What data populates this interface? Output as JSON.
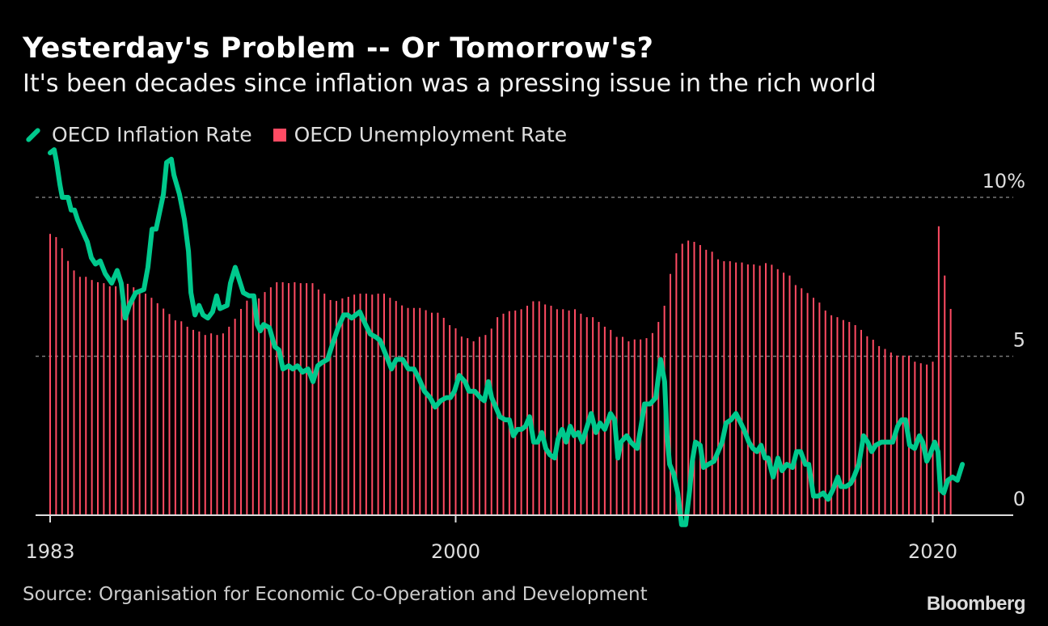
{
  "title": "Yesterday's Problem -- Or Tomorrow's?",
  "subtitle": "It's been decades since inflation was a pressing issue in the rich world",
  "source": "Source: Organisation for Economic Co-Operation and Development",
  "logo": "Bloomberg",
  "colors": {
    "inflation": "#00c98d",
    "unemployment": "#ff4b63",
    "background": "#000000",
    "grid": "#777777"
  },
  "chart_data": {
    "type": "bar+line",
    "title": "Yesterday's Problem -- Or Tomorrow's?",
    "legend": [
      "OECD Inflation Rate",
      "OECD Unemployment Rate"
    ],
    "legend_placement": "top-left",
    "xlabel": "",
    "ylabel": "",
    "xlim": [
      1982.4,
      2023.4
    ],
    "ylim": [
      0,
      10
    ],
    "x_ticks": [
      {
        "value": 1983,
        "label": "1983"
      },
      {
        "value": 2000,
        "label": "2000"
      },
      {
        "value": 2020,
        "label": "2020"
      }
    ],
    "y_ticks": [
      {
        "value": 10,
        "label": "10%"
      },
      {
        "value": 5,
        "label": "5"
      },
      {
        "value": 0,
        "label": "0"
      }
    ],
    "grid": "dashed horizontal at 5 and 10",
    "unemployment": {
      "name": "OECD Unemployment Rate",
      "start": 1983.0,
      "frequency": "quarterly",
      "values": [
        8.85,
        8.75,
        8.4,
        8.0,
        7.7,
        7.5,
        7.5,
        7.4,
        7.33,
        7.3,
        7.2,
        7.2,
        7.2,
        7.28,
        7.17,
        7.0,
        6.97,
        6.84,
        6.67,
        6.5,
        6.33,
        6.13,
        6.1,
        5.93,
        5.83,
        5.78,
        5.67,
        5.72,
        5.67,
        5.72,
        5.93,
        6.18,
        6.49,
        6.75,
        6.8,
        6.82,
        7.02,
        7.17,
        7.33,
        7.33,
        7.3,
        7.33,
        7.3,
        7.3,
        7.3,
        7.1,
        6.97,
        6.77,
        6.74,
        6.82,
        6.87,
        6.94,
        6.97,
        6.97,
        6.94,
        6.97,
        6.97,
        6.84,
        6.74,
        6.6,
        6.52,
        6.52,
        6.52,
        6.45,
        6.37,
        6.37,
        6.21,
        5.98,
        5.88,
        5.62,
        5.57,
        5.47,
        5.61,
        5.67,
        5.87,
        6.23,
        6.34,
        6.42,
        6.44,
        6.48,
        6.59,
        6.73,
        6.73,
        6.63,
        6.59,
        6.48,
        6.48,
        6.44,
        6.48,
        6.34,
        6.23,
        6.23,
        6.08,
        5.93,
        5.83,
        5.61,
        5.61,
        5.47,
        5.53,
        5.53,
        5.57,
        5.73,
        6.08,
        6.59,
        7.59,
        8.24,
        8.54,
        8.64,
        8.6,
        8.5,
        8.35,
        8.29,
        8.05,
        7.99,
        7.99,
        7.95,
        7.95,
        7.89,
        7.89,
        7.85,
        7.93,
        7.88,
        7.74,
        7.63,
        7.54,
        7.24,
        7.14,
        6.99,
        6.84,
        6.69,
        6.44,
        6.29,
        6.23,
        6.14,
        6.08,
        5.98,
        5.83,
        5.63,
        5.52,
        5.32,
        5.23,
        5.12,
        5.02,
        5.02,
        5.02,
        4.83,
        4.78,
        4.74,
        4.83,
        9.09,
        7.54,
        6.49
      ]
    },
    "inflation": {
      "name": "OECD Inflation Rate",
      "points": [
        [
          1983.0,
          11.4
        ],
        [
          1983.17,
          11.5
        ],
        [
          1983.27,
          11.1
        ],
        [
          1983.41,
          10.4
        ],
        [
          1983.51,
          10.0
        ],
        [
          1983.75,
          10.0
        ],
        [
          1983.88,
          9.6
        ],
        [
          1984.02,
          9.6
        ],
        [
          1984.15,
          9.3
        ],
        [
          1984.32,
          9.0
        ],
        [
          1984.56,
          8.6
        ],
        [
          1984.73,
          8.1
        ],
        [
          1984.9,
          7.9
        ],
        [
          1985.1,
          8.0
        ],
        [
          1985.31,
          7.6
        ],
        [
          1985.58,
          7.3
        ],
        [
          1985.81,
          7.7
        ],
        [
          1985.98,
          7.3
        ],
        [
          1986.15,
          6.2
        ],
        [
          1986.32,
          6.6
        ],
        [
          1986.59,
          7.0
        ],
        [
          1986.93,
          7.1
        ],
        [
          1987.1,
          7.8
        ],
        [
          1987.27,
          9.0
        ],
        [
          1987.44,
          9.0
        ],
        [
          1987.58,
          9.5
        ],
        [
          1987.75,
          10.1
        ],
        [
          1987.88,
          11.1
        ],
        [
          1988.08,
          11.2
        ],
        [
          1988.19,
          10.7
        ],
        [
          1988.42,
          10.1
        ],
        [
          1988.63,
          9.3
        ],
        [
          1988.8,
          8.3
        ],
        [
          1988.9,
          7.0
        ],
        [
          1989.07,
          6.3
        ],
        [
          1989.24,
          6.6
        ],
        [
          1989.41,
          6.3
        ],
        [
          1989.61,
          6.2
        ],
        [
          1989.81,
          6.4
        ],
        [
          1989.98,
          6.9
        ],
        [
          1990.12,
          6.5
        ],
        [
          1990.42,
          6.6
        ],
        [
          1990.56,
          7.3
        ],
        [
          1990.76,
          7.8
        ],
        [
          1990.93,
          7.4
        ],
        [
          1991.1,
          7.0
        ],
        [
          1991.34,
          6.9
        ],
        [
          1991.54,
          6.9
        ],
        [
          1991.68,
          6.0
        ],
        [
          1991.81,
          5.8
        ],
        [
          1991.95,
          6.0
        ],
        [
          1992.19,
          5.9
        ],
        [
          1992.42,
          5.3
        ],
        [
          1992.59,
          5.2
        ],
        [
          1992.76,
          4.6
        ],
        [
          1993.0,
          4.7
        ],
        [
          1993.17,
          4.6
        ],
        [
          1993.37,
          4.7
        ],
        [
          1993.58,
          4.5
        ],
        [
          1993.81,
          4.6
        ],
        [
          1994.02,
          4.2
        ],
        [
          1994.22,
          4.7
        ],
        [
          1994.39,
          4.8
        ],
        [
          1994.63,
          4.9
        ],
        [
          1994.8,
          5.3
        ],
        [
          1995.07,
          5.9
        ],
        [
          1995.31,
          6.3
        ],
        [
          1995.47,
          6.3
        ],
        [
          1995.64,
          6.2
        ],
        [
          1995.81,
          6.3
        ],
        [
          1995.98,
          6.4
        ],
        [
          1996.22,
          6.0
        ],
        [
          1996.42,
          5.7
        ],
        [
          1996.66,
          5.6
        ],
        [
          1996.83,
          5.5
        ],
        [
          1997.1,
          5.0
        ],
        [
          1997.31,
          4.6
        ],
        [
          1997.51,
          4.9
        ],
        [
          1997.78,
          4.9
        ],
        [
          1998.02,
          4.6
        ],
        [
          1998.25,
          4.6
        ],
        [
          1998.46,
          4.3
        ],
        [
          1998.69,
          3.9
        ],
        [
          1998.93,
          3.7
        ],
        [
          1999.14,
          3.4
        ],
        [
          1999.37,
          3.6
        ],
        [
          1999.61,
          3.7
        ],
        [
          1999.78,
          3.7
        ],
        [
          1999.95,
          3.9
        ],
        [
          2000.15,
          4.4
        ],
        [
          2000.39,
          4.2
        ],
        [
          2000.56,
          3.9
        ],
        [
          2000.8,
          3.9
        ],
        [
          2001.03,
          3.7
        ],
        [
          2001.2,
          3.6
        ],
        [
          2001.37,
          4.2
        ],
        [
          2001.51,
          3.7
        ],
        [
          2001.68,
          3.4
        ],
        [
          2001.85,
          3.1
        ],
        [
          2002.08,
          3.0
        ],
        [
          2002.25,
          3.0
        ],
        [
          2002.42,
          2.5
        ],
        [
          2002.59,
          2.7
        ],
        [
          2002.76,
          2.7
        ],
        [
          2002.93,
          2.8
        ],
        [
          2003.1,
          3.1
        ],
        [
          2003.27,
          2.3
        ],
        [
          2003.44,
          2.3
        ],
        [
          2003.61,
          2.6
        ],
        [
          2003.78,
          2.1
        ],
        [
          2003.95,
          1.9
        ],
        [
          2004.15,
          1.8
        ],
        [
          2004.29,
          2.4
        ],
        [
          2004.46,
          2.7
        ],
        [
          2004.63,
          2.3
        ],
        [
          2004.8,
          2.8
        ],
        [
          2004.97,
          2.5
        ],
        [
          2005.14,
          2.6
        ],
        [
          2005.31,
          2.3
        ],
        [
          2005.47,
          2.7
        ],
        [
          2005.68,
          3.2
        ],
        [
          2005.88,
          2.6
        ],
        [
          2006.05,
          2.9
        ],
        [
          2006.25,
          2.7
        ],
        [
          2006.49,
          3.2
        ],
        [
          2006.66,
          3.0
        ],
        [
          2006.8,
          1.8
        ],
        [
          2006.93,
          2.3
        ],
        [
          2007.17,
          2.5
        ],
        [
          2007.34,
          2.3
        ],
        [
          2007.61,
          2.1
        ],
        [
          2007.75,
          2.7
        ],
        [
          2007.92,
          3.5
        ],
        [
          2008.15,
          3.5
        ],
        [
          2008.39,
          3.7
        ],
        [
          2008.59,
          4.9
        ],
        [
          2008.76,
          4.2
        ],
        [
          2008.86,
          2.5
        ],
        [
          2008.97,
          1.6
        ],
        [
          2009.14,
          1.3
        ],
        [
          2009.31,
          0.7
        ],
        [
          2009.47,
          -0.3
        ],
        [
          2009.64,
          -0.3
        ],
        [
          2009.81,
          0.8
        ],
        [
          2009.92,
          1.7
        ],
        [
          2010.05,
          2.3
        ],
        [
          2010.25,
          2.2
        ],
        [
          2010.39,
          1.5
        ],
        [
          2010.59,
          1.6
        ],
        [
          2010.83,
          1.7
        ],
        [
          2011.0,
          2.0
        ],
        [
          2011.17,
          2.3
        ],
        [
          2011.34,
          2.9
        ],
        [
          2011.54,
          3.0
        ],
        [
          2011.75,
          3.2
        ],
        [
          2011.95,
          2.9
        ],
        [
          2012.08,
          2.7
        ],
        [
          2012.29,
          2.3
        ],
        [
          2012.46,
          2.1
        ],
        [
          2012.63,
          2.0
        ],
        [
          2012.8,
          2.2
        ],
        [
          2012.97,
          1.8
        ],
        [
          2013.1,
          1.8
        ],
        [
          2013.31,
          1.2
        ],
        [
          2013.51,
          1.8
        ],
        [
          2013.68,
          1.4
        ],
        [
          2013.88,
          1.6
        ],
        [
          2014.12,
          1.5
        ],
        [
          2014.29,
          2.0
        ],
        [
          2014.46,
          2.0
        ],
        [
          2014.66,
          1.6
        ],
        [
          2014.8,
          1.6
        ],
        [
          2015.0,
          0.6
        ],
        [
          2015.2,
          0.6
        ],
        [
          2015.41,
          0.7
        ],
        [
          2015.61,
          0.5
        ],
        [
          2015.81,
          0.8
        ],
        [
          2016.02,
          1.2
        ],
        [
          2016.15,
          0.9
        ],
        [
          2016.36,
          0.9
        ],
        [
          2016.56,
          1.0
        ],
        [
          2016.69,
          1.2
        ],
        [
          2016.9,
          1.6
        ],
        [
          2017.1,
          2.5
        ],
        [
          2017.27,
          2.3
        ],
        [
          2017.44,
          2.0
        ],
        [
          2017.61,
          2.2
        ],
        [
          2017.85,
          2.3
        ],
        [
          2018.08,
          2.3
        ],
        [
          2018.32,
          2.3
        ],
        [
          2018.53,
          2.8
        ],
        [
          2018.69,
          3.0
        ],
        [
          2018.86,
          3.0
        ],
        [
          2019.03,
          2.2
        ],
        [
          2019.24,
          2.1
        ],
        [
          2019.44,
          2.5
        ],
        [
          2019.58,
          2.3
        ],
        [
          2019.75,
          1.7
        ],
        [
          2019.88,
          1.9
        ],
        [
          2020.08,
          2.3
        ],
        [
          2020.22,
          2.0
        ],
        [
          2020.32,
          0.8
        ],
        [
          2020.46,
          0.7
        ],
        [
          2020.63,
          1.1
        ],
        [
          2020.83,
          1.2
        ],
        [
          2021.03,
          1.1
        ],
        [
          2021.24,
          1.6
        ]
      ]
    }
  }
}
